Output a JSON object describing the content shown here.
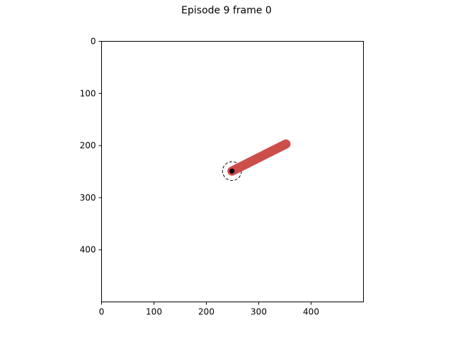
{
  "title": "Episode 9 frame 0",
  "axes": {
    "x_min": 0,
    "x_max": 500,
    "y_min": 0,
    "y_max": 500,
    "y_inverted": true,
    "x_ticks": [
      0,
      100,
      200,
      300,
      400
    ],
    "y_ticks": [
      0,
      100,
      200,
      300,
      400
    ]
  },
  "scene": {
    "arm": {
      "start": [
        249,
        249
      ],
      "end": [
        352,
        197
      ],
      "color": "#cd4d4b"
    },
    "joint": {
      "center": [
        249,
        249
      ],
      "color": "#000000"
    },
    "target_ring": {
      "center": [
        249,
        249
      ],
      "radius": 18,
      "style": "dashed",
      "color": "#000000"
    }
  }
}
